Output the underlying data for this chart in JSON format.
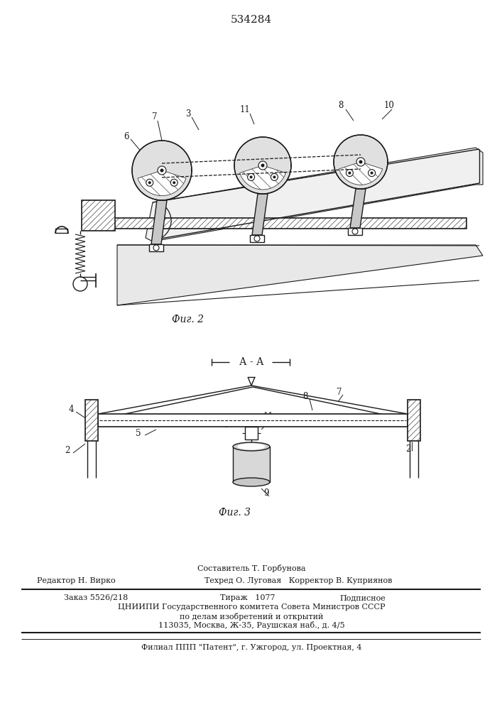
{
  "patent_number": "534284",
  "fig2_caption": "Фиг. 2",
  "fig3_caption": "Фиг. 3",
  "section_label": "А - А",
  "bg_color": "#ffffff",
  "line_color": "#1a1a1a",
  "footer": {
    "line1_center": "Составитель Т. Горбунова",
    "line2_left": "Редактор Н. Вирко",
    "line2_center": "Техред О. Луговая   Корректор В. Куприянов",
    "line3_col1": "Заказ 5526/218",
    "line3_col2": "Тираж   1077",
    "line3_col3": "Подписное",
    "line4": "ЦНИИПИ Государственного комитета Совета Министров СССР",
    "line5": "по делам изобретений и открытий",
    "line6": "113035, Москва, Ж-35, Раушская наб., д. 4/5",
    "line7": "Филиал ППП \"Патент\", г. Ужгород, ул. Проектная, 4"
  }
}
